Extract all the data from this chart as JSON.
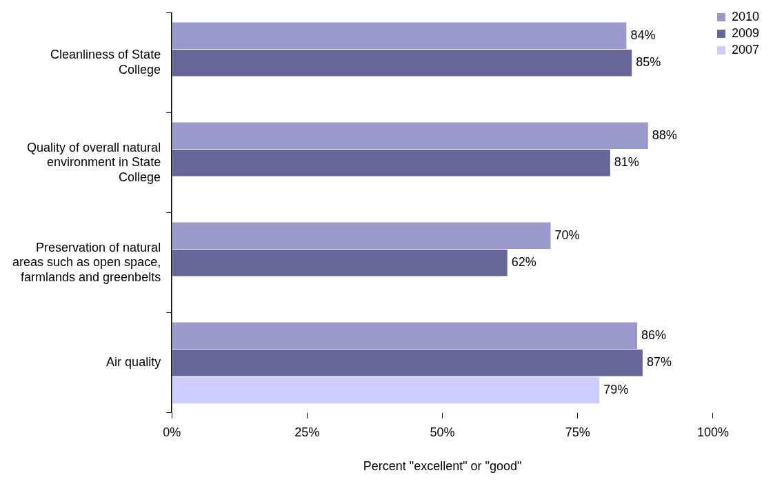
{
  "chart_data": {
    "type": "bar",
    "orientation": "horizontal",
    "xlabel": "Percent \"excellent\" or \"good\"",
    "categories": [
      "Cleanliness of State College",
      "Quality of overall natural environment in State College",
      "Preservation of natural areas such as open space, farmlands and greenbelts",
      "Air quality"
    ],
    "series": [
      {
        "name": "2010",
        "color": "#9999cc",
        "values": [
          84,
          88,
          70,
          86
        ],
        "value_labels": [
          "84%",
          "88%",
          "70%",
          "86%"
        ]
      },
      {
        "name": "2009",
        "color": "#666699",
        "values": [
          85,
          81,
          62,
          87
        ],
        "value_labels": [
          "85%",
          "81%",
          "62%",
          "87%"
        ]
      },
      {
        "name": "2007",
        "color": "#ccccff",
        "values": [
          null,
          null,
          null,
          79
        ],
        "value_labels": [
          null,
          null,
          null,
          "79%"
        ]
      }
    ],
    "xlim": [
      0,
      100
    ],
    "xticks": [
      {
        "value": 0,
        "label": "0%"
      },
      {
        "value": 25,
        "label": "25%"
      },
      {
        "value": 50,
        "label": "50%"
      },
      {
        "value": 75,
        "label": "75%"
      },
      {
        "value": 100,
        "label": "100%"
      }
    ],
    "grid": false,
    "legend": "top right"
  }
}
